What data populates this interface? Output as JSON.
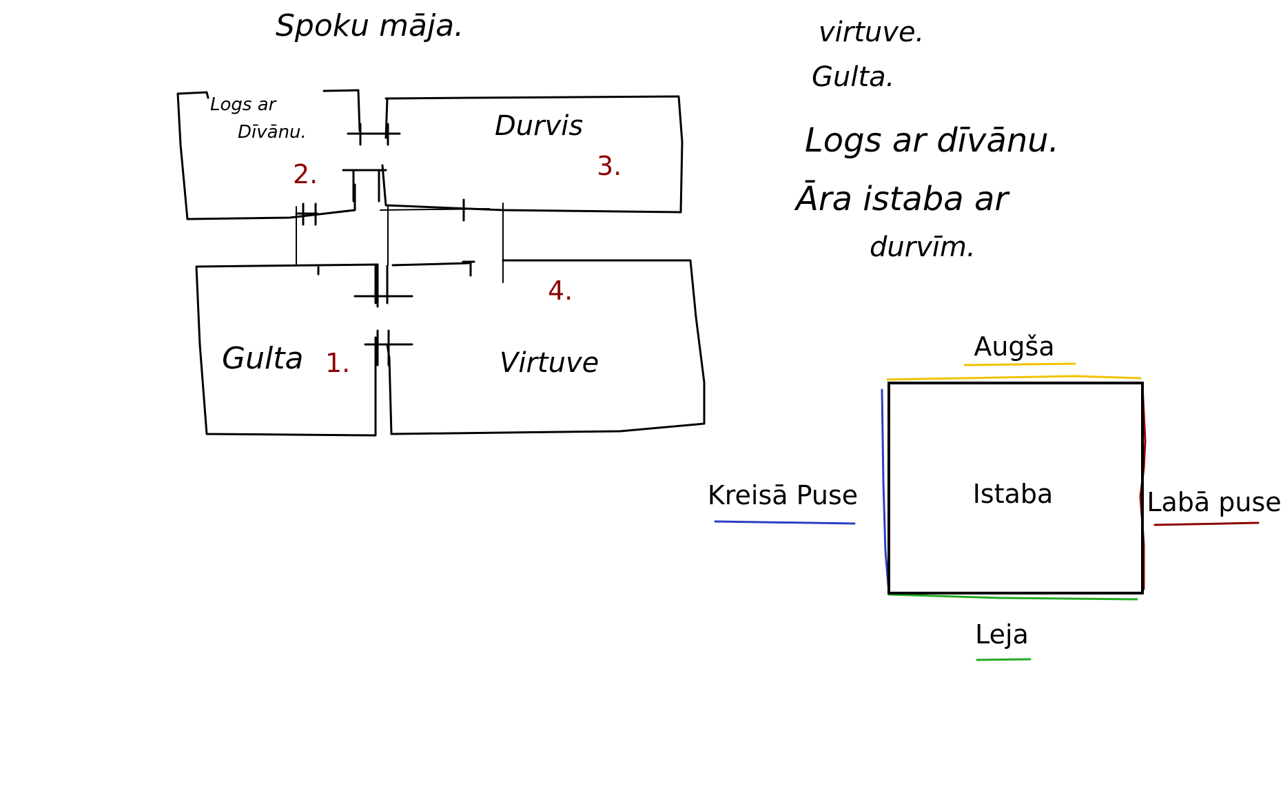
{
  "floorplan": {
    "title": "Spoku māja.",
    "rooms": [
      {
        "name": "Logs ar",
        "name2": "Dīvānu.",
        "number": "2."
      },
      {
        "name": "Durvis",
        "number": "3."
      },
      {
        "name": "Gulta",
        "number": "1."
      },
      {
        "name": "Virtuve",
        "number": ""
      },
      {
        "name": "",
        "number": "4."
      }
    ]
  },
  "notes": {
    "lines": [
      "virtuve.",
      "Gulta.",
      "Logs ar dīvānu.",
      "Āra istaba ar",
      "durvīm."
    ]
  },
  "room_diagram": {
    "center_label": "Istaba",
    "top_label": "Augša",
    "bottom_label": "Leja",
    "left_label": "Kreisā Puse",
    "right_label": "Labā puse",
    "colors": {
      "top": "#f2c200",
      "bottom": "#22aa22",
      "left": "#2a3fbf",
      "right": "#8b0000",
      "number_red": "#8b0000"
    }
  }
}
